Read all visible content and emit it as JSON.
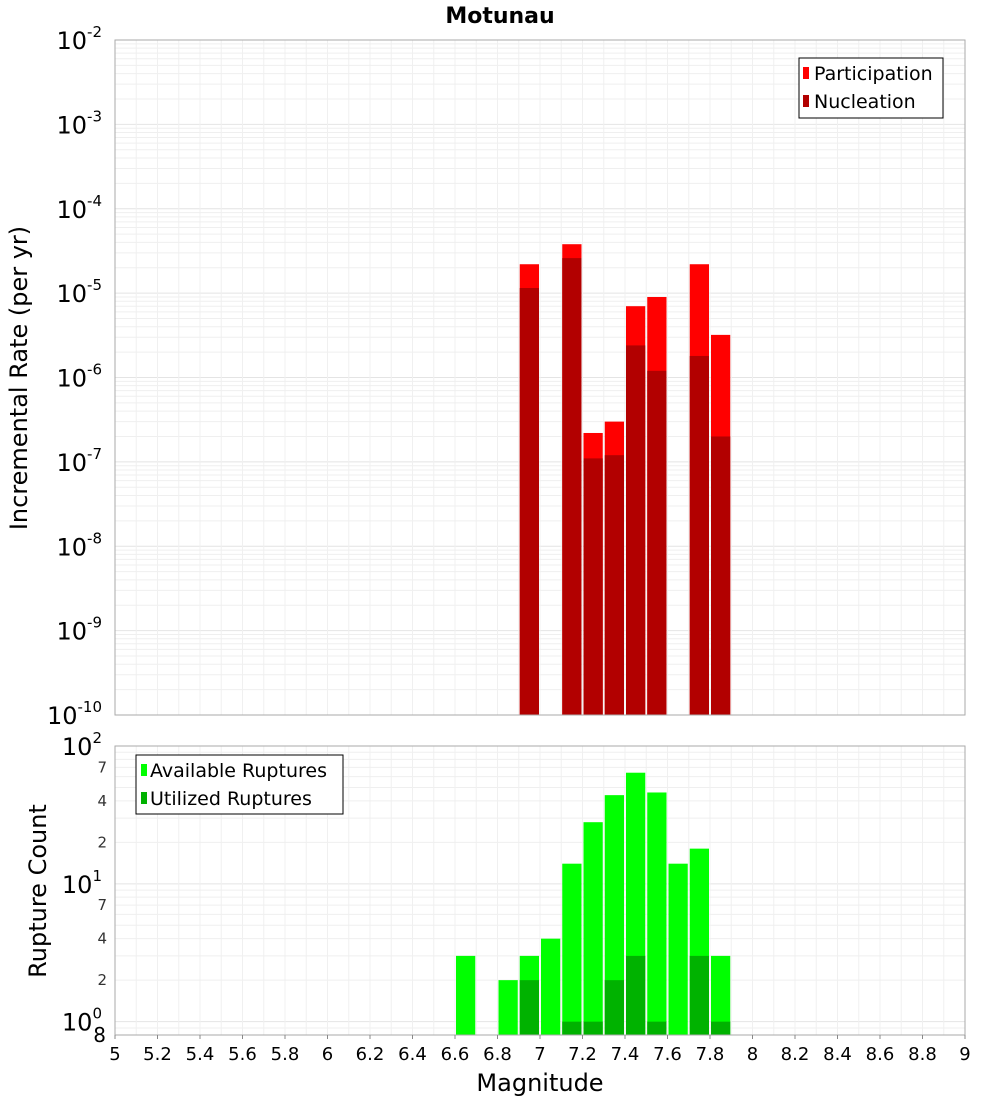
{
  "chart_data": [
    {
      "type": "bar",
      "title": "Motunau",
      "xlabel": "Magnitude",
      "ylabel": "Incremental Rate (per yr)",
      "yscale": "log",
      "ylim": [
        1e-10,
        0.01
      ],
      "xlim": [
        5,
        9
      ],
      "bin_width": 0.1,
      "y_ticks": [
        {
          "base": "10",
          "exp": "-10"
        },
        {
          "base": "10",
          "exp": "-9"
        },
        {
          "base": "10",
          "exp": "-8"
        },
        {
          "base": "10",
          "exp": "-7"
        },
        {
          "base": "10",
          "exp": "-6"
        },
        {
          "base": "10",
          "exp": "-5"
        },
        {
          "base": "10",
          "exp": "-4"
        },
        {
          "base": "10",
          "exp": "-3"
        },
        {
          "base": "10",
          "exp": "-2"
        }
      ],
      "legend": {
        "position": "top-right",
        "entries": [
          "Participation",
          "Nucleation"
        ]
      },
      "colors": {
        "Participation": "#ff0000",
        "Nucleation": "#b20000"
      },
      "series": [
        {
          "name": "Participation",
          "x": [
            6.95,
            7.15,
            7.25,
            7.35,
            7.45,
            7.55,
            7.75,
            7.85
          ],
          "values": [
            2.2e-05,
            3.8e-05,
            2.2e-07,
            3e-07,
            7e-06,
            9e-06,
            2.2e-05,
            3.2e-06
          ]
        },
        {
          "name": "Nucleation",
          "x": [
            6.95,
            7.15,
            7.25,
            7.35,
            7.45,
            7.55,
            7.75,
            7.85
          ],
          "values": [
            1.15e-05,
            2.6e-05,
            1.1e-07,
            1.2e-07,
            2.4e-06,
            1.2e-06,
            1.8e-06,
            2e-07
          ]
        }
      ]
    },
    {
      "type": "bar",
      "title": "",
      "xlabel": "Magnitude",
      "ylabel": "Rupture Count",
      "yscale": "log",
      "ylim": [
        0.8,
        100
      ],
      "xlim": [
        5,
        9
      ],
      "bin_width": 0.1,
      "y_ticks": [
        {
          "base": "10",
          "exp": "0"
        },
        {
          "base": "10",
          "exp": "1"
        },
        {
          "base": "10",
          "exp": "2"
        }
      ],
      "y_minor_tick_labels": [
        {
          "value": 0.8,
          "label": "8"
        },
        {
          "value": 2,
          "label": "2"
        },
        {
          "value": 4,
          "label": "4"
        },
        {
          "value": 7,
          "label": "7"
        },
        {
          "value": 20,
          "label": "2"
        },
        {
          "value": 40,
          "label": "4"
        },
        {
          "value": 70,
          "label": "7"
        }
      ],
      "x_ticks": [
        "5",
        "5.2",
        "5.4",
        "5.6",
        "5.8",
        "6",
        "6.2",
        "6.4",
        "6.6",
        "6.8",
        "7",
        "7.2",
        "7.4",
        "7.6",
        "7.8",
        "8",
        "8.2",
        "8.4",
        "8.6",
        "8.8",
        "9"
      ],
      "legend": {
        "position": "top-left",
        "entries": [
          "Available Ruptures",
          "Utilized Ruptures"
        ]
      },
      "colors": {
        "Available Ruptures": "#00ff00",
        "Utilized Ruptures": "#00b200"
      },
      "series": [
        {
          "name": "Available Ruptures",
          "x": [
            6.65,
            6.85,
            6.95,
            7.05,
            7.15,
            7.25,
            7.35,
            7.45,
            7.55,
            7.65,
            7.75,
            7.85
          ],
          "values": [
            3,
            2,
            3,
            4,
            14,
            28,
            44,
            64,
            46,
            14,
            18,
            3
          ]
        },
        {
          "name": "Utilized Ruptures",
          "x": [
            6.95,
            7.15,
            7.25,
            7.35,
            7.45,
            7.55,
            7.75,
            7.85
          ],
          "values": [
            2,
            1,
            1,
            2,
            3,
            1,
            3,
            1
          ]
        }
      ]
    }
  ]
}
